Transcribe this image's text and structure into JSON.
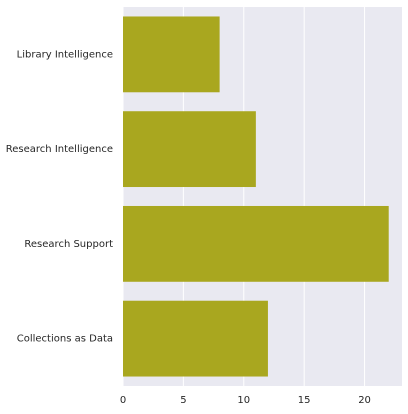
{
  "chart_data": {
    "type": "bar",
    "orientation": "horizontal",
    "title": "",
    "xlabel": "",
    "ylabel": "",
    "categories": [
      "Library Intelligence",
      "Research Intelligence",
      "Research Support",
      "Collections as Data"
    ],
    "values": [
      8,
      11,
      22,
      12
    ],
    "xlim": [
      0,
      23.1
    ],
    "xticks": [
      0,
      5,
      10,
      15,
      20
    ],
    "grid": true,
    "legend": "none",
    "colors": {
      "bar": "#a9a71f",
      "plot_background": "#e9e9f1",
      "grid": "#ffffff",
      "text": "#262626"
    }
  }
}
